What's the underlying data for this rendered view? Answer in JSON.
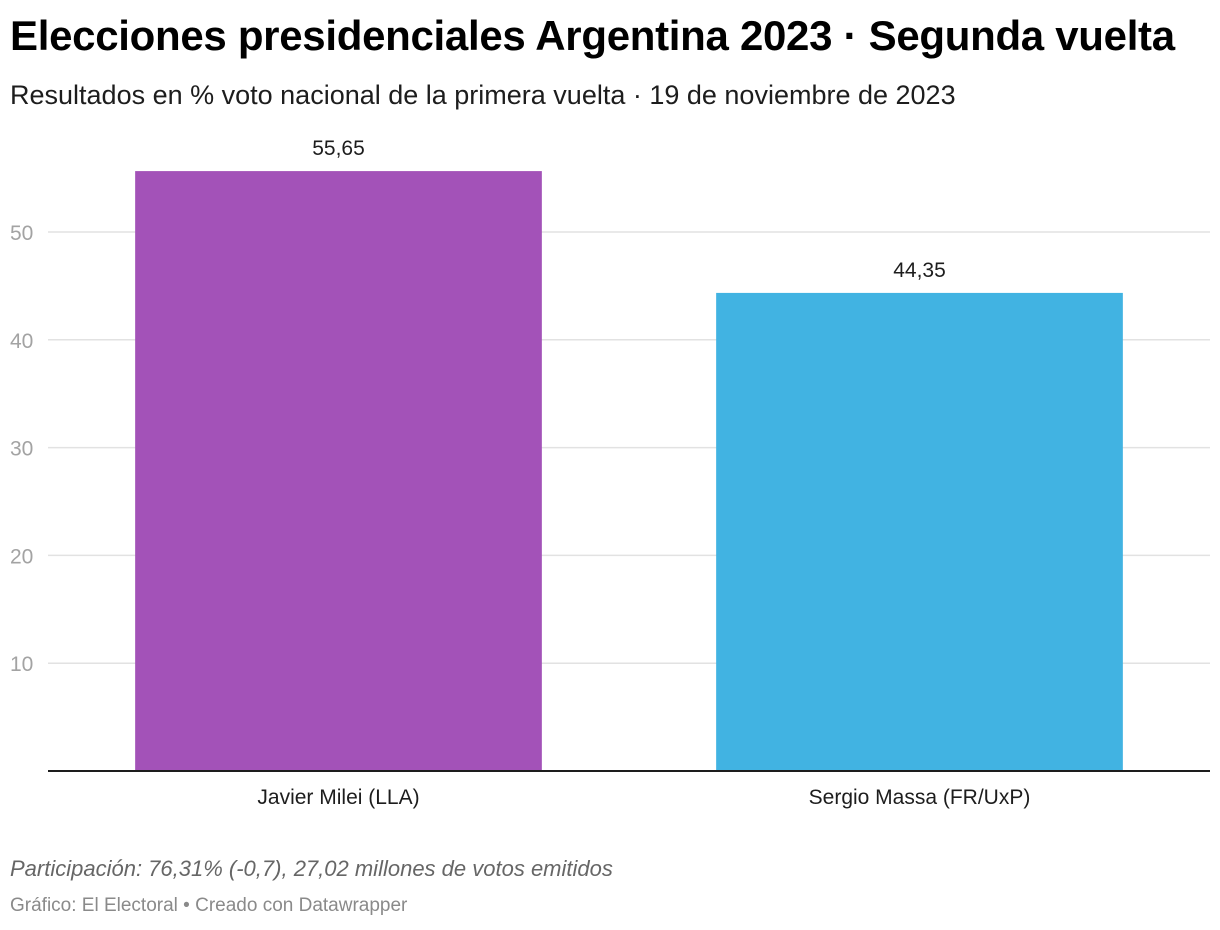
{
  "chart_data": {
    "type": "bar",
    "title": "Elecciones presidenciales Argentina 2023 · Segunda vuelta",
    "subtitle": "Resultados en % voto nacional de la primera vuelta · 19 de noviembre de 2023",
    "categories": [
      "Javier Milei (LLA)",
      "Sergio Massa (FR/UxP)"
    ],
    "values": [
      55.65,
      44.35
    ],
    "value_labels": [
      "55,65",
      "44,35"
    ],
    "colors": [
      "#a352b8",
      "#41b3e2"
    ],
    "ylim": [
      0,
      58
    ],
    "yticks": [
      10,
      20,
      30,
      40,
      50
    ],
    "grid": true,
    "xlabel": "",
    "ylabel": "",
    "note": "Participación: 76,31% (-0,7), 27,02 millones de votos emitidos",
    "credit": "Gráfico: El Electoral • Creado con Datawrapper"
  }
}
